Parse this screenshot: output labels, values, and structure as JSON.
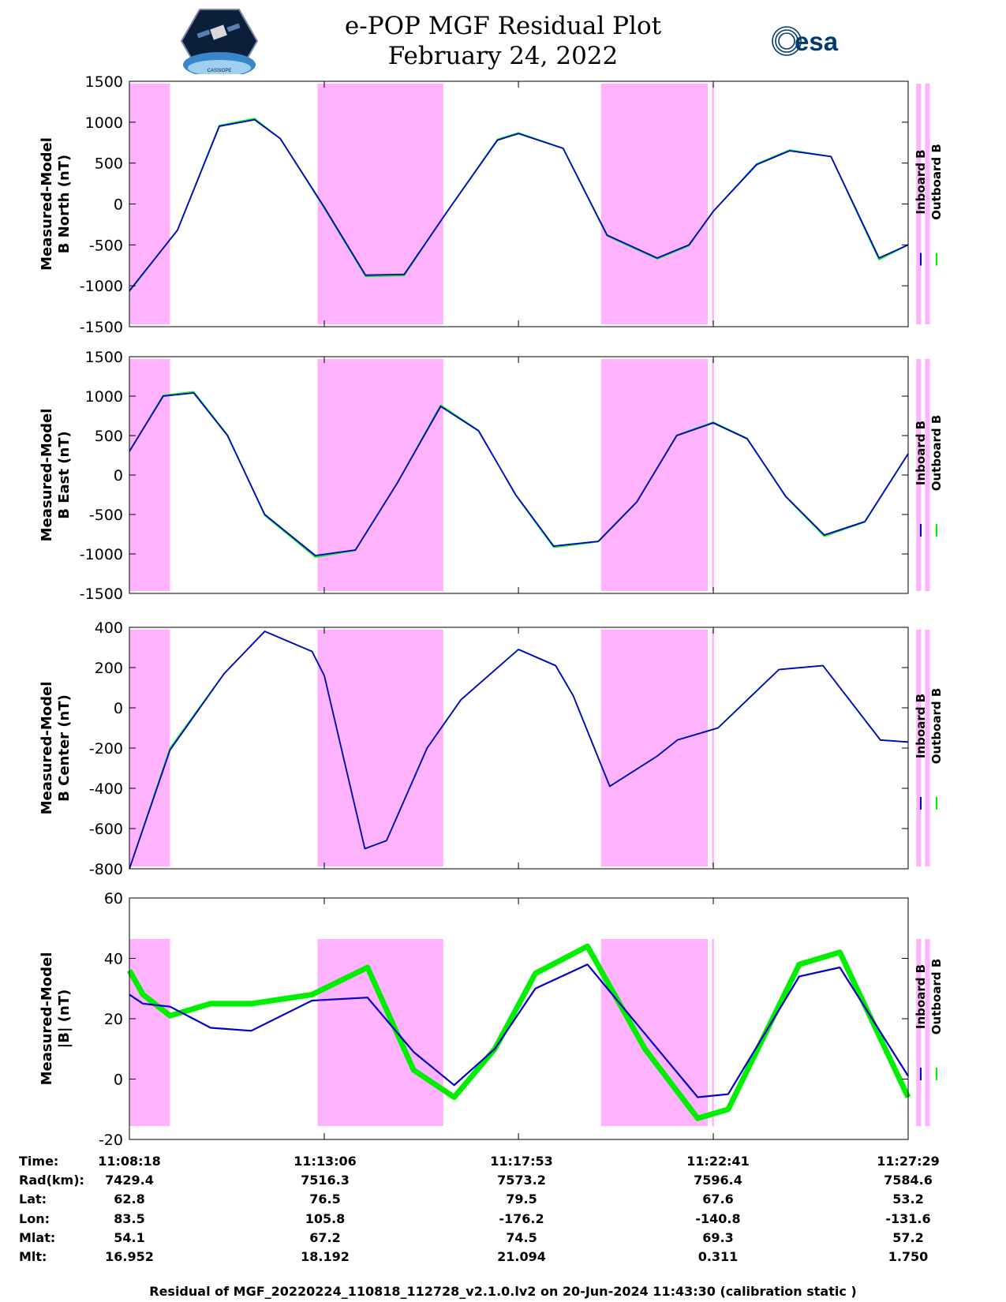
{
  "title": {
    "line1": "e-POP MGF Residual Plot",
    "line2": "February 24, 2022"
  },
  "logos": {
    "left": "cassiope-mission-logo",
    "right": "esa",
    "left_text": "CASSIOPE"
  },
  "colors": {
    "inboard": "#0000cc",
    "outboard": "#00ee00",
    "shade": "#ffb3ff",
    "esa_blue": "#003b70"
  },
  "shaded_intervals_s": [
    [
      0,
      60
    ],
    [
      278,
      464
    ],
    [
      697,
      855
    ],
    [
      861,
      864
    ],
    [
      1163,
      1170
    ],
    [
      1176,
      1183
    ]
  ],
  "chart_data": [
    {
      "type": "line",
      "ylabel": [
        "Measured-Model",
        "B North (nT)"
      ],
      "ylim": [
        -1500,
        1500
      ],
      "yticks": [
        1500,
        1000,
        500,
        0,
        -500,
        -1000,
        -1500
      ],
      "xlim": [
        "11:08:18",
        "11:27:29"
      ],
      "xticks": [
        "11:08:18",
        "11:13:06",
        "11:17:53",
        "11:22:41",
        "11:27:29"
      ],
      "legend": [
        "Inboard B",
        "Outboard B"
      ],
      "legend_position": "right",
      "series": [
        {
          "name": "Inboard B",
          "x": [
            "11:08:18",
            "11:09:29",
            "11:10:31",
            "11:11:23",
            "11:12:01",
            "11:13:06",
            "11:14:07",
            "11:15:04",
            "11:16:07",
            "11:17:22",
            "11:17:53",
            "11:18:59",
            "11:20:04",
            "11:21:18",
            "11:22:05",
            "11:22:41",
            "11:23:45",
            "11:24:34",
            "11:25:35",
            "11:26:46",
            "11:27:29"
          ],
          "y": [
            -1060,
            -320,
            950,
            1030,
            800,
            -40,
            -870,
            -860,
            -100,
            780,
            860,
            680,
            -380,
            -660,
            -500,
            -90,
            480,
            650,
            580,
            -660,
            -500
          ]
        },
        {
          "name": "Outboard B",
          "x": [
            "11:08:18",
            "11:09:29",
            "11:10:31",
            "11:11:23",
            "11:12:01",
            "11:13:06",
            "11:14:07",
            "11:15:04",
            "11:16:07",
            "11:17:22",
            "11:17:53",
            "11:18:59",
            "11:20:04",
            "11:21:18",
            "11:22:05",
            "11:22:41",
            "11:23:45",
            "11:24:34",
            "11:25:35",
            "11:26:46",
            "11:27:29"
          ],
          "y": [
            -1070,
            -320,
            960,
            1045,
            800,
            -50,
            -885,
            -875,
            -100,
            790,
            870,
            680,
            -390,
            -670,
            -510,
            -90,
            490,
            660,
            580,
            -680,
            -500
          ]
        }
      ]
    },
    {
      "type": "line",
      "ylabel": [
        "Measured-Model",
        "B East (nT)"
      ],
      "ylim": [
        -1500,
        1500
      ],
      "yticks": [
        1500,
        1000,
        500,
        0,
        -500,
        -1000,
        -1500
      ],
      "xlim": [
        "11:08:18",
        "11:27:29"
      ],
      "xticks": [
        "11:08:18",
        "11:13:06",
        "11:17:53",
        "11:22:41",
        "11:27:29"
      ],
      "legend": [
        "Inboard B",
        "Outboard B"
      ],
      "legend_position": "right",
      "series": [
        {
          "name": "Inboard B",
          "x": [
            "11:08:18",
            "11:09:08",
            "11:09:53",
            "11:10:43",
            "11:11:38",
            "11:12:53",
            "11:13:52",
            "11:14:54",
            "11:15:58",
            "11:16:54",
            "11:17:49",
            "11:18:45",
            "11:19:51",
            "11:20:48",
            "11:21:47",
            "11:22:41",
            "11:23:31",
            "11:24:28",
            "11:25:25",
            "11:26:25",
            "11:27:29"
          ],
          "y": [
            300,
            1000,
            1040,
            500,
            -500,
            -1020,
            -950,
            -100,
            870,
            560,
            -250,
            -900,
            -840,
            -340,
            500,
            660,
            460,
            -270,
            -760,
            -590,
            270
          ]
        },
        {
          "name": "Outboard B",
          "x": [
            "11:08:18",
            "11:09:08",
            "11:09:53",
            "11:10:43",
            "11:11:38",
            "11:12:53",
            "11:13:52",
            "11:14:54",
            "11:15:58",
            "11:16:54",
            "11:17:49",
            "11:18:45",
            "11:19:51",
            "11:20:48",
            "11:21:47",
            "11:22:41",
            "11:23:31",
            "11:24:28",
            "11:25:25",
            "11:26:25",
            "11:27:29"
          ],
          "y": [
            300,
            1010,
            1055,
            510,
            -510,
            -1040,
            -955,
            -100,
            885,
            565,
            -255,
            -915,
            -845,
            -345,
            505,
            670,
            465,
            -275,
            -775,
            -595,
            270
          ]
        }
      ]
    },
    {
      "type": "line",
      "ylabel": [
        "Measured-Model",
        "B Center (nT)"
      ],
      "ylim": [
        -800,
        400
      ],
      "yticks": [
        400,
        200,
        0,
        -200,
        -400,
        -600,
        -800
      ],
      "xlim": [
        "11:08:18",
        "11:27:29"
      ],
      "xticks": [
        "11:08:18",
        "11:13:06",
        "11:17:53",
        "11:22:41",
        "11:27:29"
      ],
      "legend": [
        "Inboard B",
        "Outboard B"
      ],
      "legend_position": "right",
      "series": [
        {
          "name": "Inboard B",
          "x": [
            "11:08:18",
            "11:09:18",
            "11:10:38",
            "11:11:38",
            "11:12:48",
            "11:13:06",
            "11:14:06",
            "11:14:38",
            "11:15:38",
            "11:16:28",
            "11:17:53",
            "11:18:48",
            "11:19:14",
            "11:20:08",
            "11:21:18",
            "11:21:48",
            "11:22:48",
            "11:24:18",
            "11:25:23",
            "11:26:48",
            "11:27:29"
          ],
          "y": [
            -800,
            -210,
            170,
            380,
            280,
            160,
            -700,
            -660,
            -200,
            40,
            290,
            210,
            60,
            -390,
            -240,
            -160,
            -100,
            190,
            210,
            -160,
            -170
          ]
        },
        {
          "name": "Outboard B",
          "x": [
            "11:08:18",
            "11:09:18",
            "11:10:38",
            "11:11:38",
            "11:12:48",
            "11:13:06",
            "11:14:06",
            "11:14:38",
            "11:15:38",
            "11:16:28",
            "11:17:53",
            "11:18:48",
            "11:19:14",
            "11:20:08",
            "11:21:18",
            "11:21:48",
            "11:22:48",
            "11:24:18",
            "11:25:23",
            "11:26:48",
            "11:27:29"
          ],
          "y": [
            -800,
            -200,
            170,
            380,
            280,
            160,
            -700,
            -660,
            -200,
            40,
            290,
            210,
            60,
            -390,
            -240,
            -160,
            -100,
            190,
            210,
            -160,
            -170
          ]
        }
      ]
    },
    {
      "type": "line",
      "ylabel": [
        "Measured-Model",
        "|B| (nT)"
      ],
      "ylim": [
        -20,
        60
      ],
      "yticks": [
        60,
        40,
        20,
        0,
        -20
      ],
      "xlim": [
        "11:08:18",
        "11:27:29"
      ],
      "xticks": [
        "11:08:18",
        "11:13:06",
        "11:17:53",
        "11:22:41",
        "11:27:29"
      ],
      "legend": [
        "Inboard B",
        "Outboard B"
      ],
      "legend_position": "right",
      "series": [
        {
          "name": "Inboard B",
          "x": [
            "11:08:18",
            "11:08:38",
            "11:09:18",
            "11:10:18",
            "11:11:18",
            "11:12:48",
            "11:14:10",
            "11:15:18",
            "11:16:18",
            "11:17:18",
            "11:18:18",
            "11:19:35",
            "11:21:00",
            "11:22:18",
            "11:23:03",
            "11:24:48",
            "11:25:48",
            "11:27:29"
          ],
          "y": [
            28,
            25,
            24,
            17,
            16,
            26,
            27,
            9,
            -2,
            10,
            30,
            38,
            15,
            -6,
            -5,
            34,
            37,
            1
          ]
        },
        {
          "name": "Outboard B",
          "x": [
            "11:08:18",
            "11:08:38",
            "11:09:18",
            "11:10:18",
            "11:11:18",
            "11:12:48",
            "11:14:10",
            "11:15:18",
            "11:16:18",
            "11:17:18",
            "11:18:18",
            "11:19:35",
            "11:21:00",
            "11:22:18",
            "11:23:03",
            "11:24:48",
            "11:25:48",
            "11:27:29"
          ],
          "y": [
            36,
            28,
            21,
            25,
            25,
            28,
            37,
            3,
            -6,
            10,
            35,
            44,
            10,
            -13,
            -10,
            38,
            42,
            -6
          ]
        }
      ]
    }
  ],
  "ephemeris": {
    "labels": [
      "Time:",
      "Rad(km):",
      "Lat:",
      "Lon:",
      "Mlat:",
      "Mlt:"
    ],
    "columns": [
      [
        "11:08:18",
        "7429.4",
        "62.8",
        "83.5",
        "54.1",
        "16.952"
      ],
      [
        "11:13:06",
        "7516.3",
        "76.5",
        "105.8",
        "67.2",
        "18.192"
      ],
      [
        "11:17:53",
        "7573.2",
        "79.5",
        "-176.2",
        "74.5",
        "21.094"
      ],
      [
        "11:22:41",
        "7596.4",
        "67.6",
        "-140.8",
        "69.3",
        "0.311"
      ],
      [
        "11:27:29",
        "7584.6",
        "53.2",
        "-131.6",
        "57.2",
        "1.750"
      ]
    ]
  },
  "footer": "Residual of MGF_20220224_110818_112728_v2.1.0.lv2 on 20-Jun-2024 11:43:30 (calibration static )"
}
